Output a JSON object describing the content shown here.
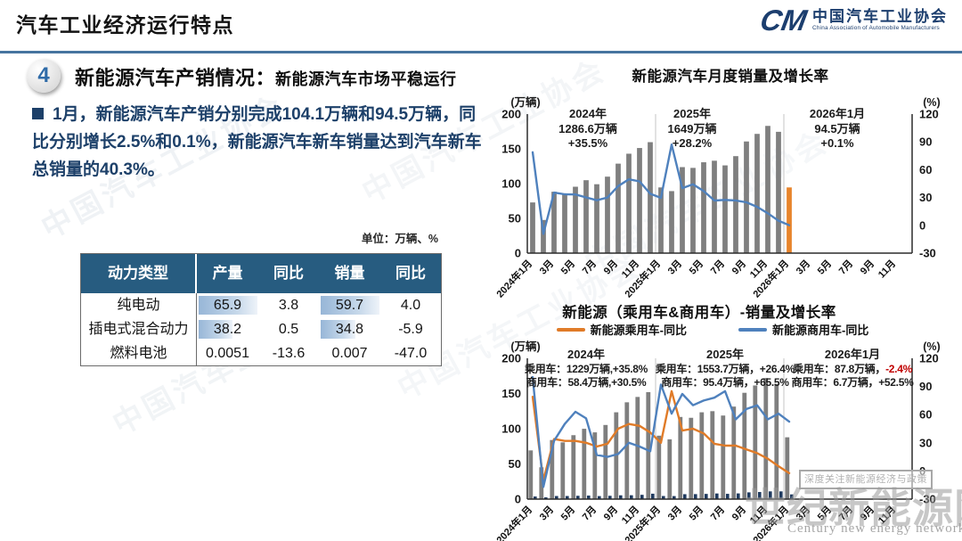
{
  "header": {
    "title": "汽车工业经济运行特点",
    "logo": {
      "mark": "CM",
      "cn": "中国汽车工业协会",
      "en": "China Association of Automobile Manufacturers"
    }
  },
  "section": {
    "number": "4",
    "title": "新能源汽车产销情况：",
    "subtitle": "新能源汽车市场平稳运行"
  },
  "paragraph": {
    "text": "1月，新能源汽车产销分别完成104.1万辆和94.5万辆，同比分别增长2.5%和0.1%，新能源汽车新车销量达到汽车新车总销量的40.3%。"
  },
  "table": {
    "unit_note": "单位：万辆、%",
    "headers": [
      "动力类型",
      "产量",
      "同比",
      "销量",
      "同比"
    ],
    "rows": [
      {
        "type": "纯电动",
        "production": "65.9",
        "production_yoy": "3.8",
        "sales": "59.7",
        "sales_yoy": "4.0"
      },
      {
        "type": "插电式混合动力",
        "production": "38.2",
        "production_yoy": "0.5",
        "sales": "34.8",
        "sales_yoy": "-5.9"
      },
      {
        "type": "燃料电池",
        "production": "0.0051",
        "production_yoy": "-13.6",
        "sales": "0.007",
        "sales_yoy": "-47.0"
      }
    ]
  },
  "chart_data": [
    {
      "type": "bar+line",
      "title": "新能源汽车月度销量及增长率",
      "left_axis": {
        "unit": "(万辆)",
        "ticks": [
          0,
          50,
          100,
          150,
          200
        ],
        "max": 200
      },
      "right_axis": {
        "unit": "(%)",
        "ticks": [
          -30,
          0,
          30,
          60,
          90,
          120
        ],
        "min": -30,
        "max": 120
      },
      "n_slots": 36,
      "group_dividers": [
        12,
        24
      ],
      "x_labels": [
        "2024年1月",
        "3月",
        "5月",
        "7月",
        "9月",
        "11月",
        "2025年1月",
        "3月",
        "5月",
        "7月",
        "9月",
        "11月",
        "2026年1月",
        "3月",
        "5月",
        "7月",
        "9月",
        "11月"
      ],
      "bar_series": [
        {
          "name": "新能源汽车月度销量",
          "color": "#7F7F7F",
          "last_color": "#E8842B",
          "values": [
            72.9,
            47.7,
            88.3,
            85.0,
            95.5,
            104.9,
            99.1,
            110.0,
            128.7,
            143.0,
            151.2,
            159.6,
            94.5,
            89.2,
            123.7,
            122.6,
            130.7,
            132.9,
            126.2,
            139.5,
            160.6,
            171.5,
            183.0,
            174.5,
            94.5
          ]
        }
      ],
      "line_series": [
        {
          "name": "同比增长率",
          "color": "#4F81BD",
          "values": [
            78.8,
            -9.2,
            35.3,
            33.5,
            33.3,
            30.1,
            27.0,
            30.0,
            42.3,
            49.6,
            47.4,
            34.0,
            29.6,
            87.1,
            40.1,
            44.2,
            36.9,
            26.7,
            27.4,
            26.8,
            24.8,
            19.9,
            13.0,
            5.0,
            0.1
          ]
        }
      ],
      "annotations": [
        {
          "lines": [
            "2024年",
            "1286.6万辆",
            "+35.5%"
          ]
        },
        {
          "lines": [
            "2025年",
            "1649万辆",
            "+28.2%"
          ]
        },
        {
          "lines": [
            "2026年1月",
            "94.5万辆",
            "+0.1%"
          ]
        }
      ]
    },
    {
      "type": "bar+line",
      "title": "新能源（乘用车&商用车）-销量及增长率",
      "legend": [
        {
          "label": "新能源乘用车-同比",
          "color": "#E07B28"
        },
        {
          "label": "新能源商用车-同比",
          "color": "#4F81BD"
        }
      ],
      "left_axis": {
        "unit": "(万辆)",
        "ticks": [
          0,
          50,
          100,
          150,
          200
        ],
        "max": 200
      },
      "right_axis": {
        "unit": "(%)",
        "ticks": [
          -30,
          0,
          30,
          60,
          90,
          120
        ],
        "min": -30,
        "max": 120
      },
      "n_slots": 36,
      "group_dividers": [
        12,
        24
      ],
      "x_labels": [
        "2024年1月",
        "3月",
        "5月",
        "7月",
        "9月",
        "11月",
        "2025年1月",
        "3月",
        "5月",
        "7月",
        "9月",
        "11月",
        "2026年1月",
        "3月",
        "5月",
        "7月",
        "9月",
        "11月"
      ],
      "bar_series": [
        {
          "name": "新能源乘用车销量",
          "color": "#7F7F7F",
          "values": [
            69.2,
            45.2,
            83.9,
            80.6,
            90.8,
            99.9,
            94.8,
            105.3,
            123.3,
            137.5,
            145.1,
            151.9,
            90.1,
            84.9,
            116.7,
            115.5,
            123.3,
            124.9,
            118.7,
            131.4,
            151.0,
            161.4,
            172.0,
            163.5,
            87.8
          ]
        },
        {
          "name": "新能源商用车销量",
          "color": "#1F3A5F",
          "values": [
            3.7,
            2.5,
            4.4,
            4.4,
            4.7,
            5.0,
            4.3,
            4.7,
            5.4,
            5.5,
            6.1,
            7.7,
            4.4,
            4.3,
            7.0,
            7.1,
            7.4,
            8.0,
            7.5,
            8.1,
            9.6,
            10.1,
            11.0,
            11.0,
            6.7
          ]
        }
      ],
      "line_series": [
        {
          "name": "新能源乘用车-同比",
          "color": "#E07B28",
          "values": [
            79,
            -10,
            34,
            32,
            32,
            30,
            26,
            29,
            45,
            50,
            48,
            41,
            30,
            85,
            43,
            45,
            40,
            29,
            27,
            27,
            23,
            19,
            13,
            5,
            -2.4
          ]
        },
        {
          "name": "新能源商用车-同比",
          "color": "#4F81BD",
          "values": [
            100,
            -17,
            32,
            50,
            63,
            56,
            17,
            15,
            18,
            30,
            26,
            21,
            92,
            61,
            82,
            70,
            75,
            78,
            85,
            55,
            66,
            70,
            55,
            61,
            52.5
          ]
        }
      ],
      "annotations": [
        {
          "title": "2024年",
          "rows": [
            {
              "text": "乘用车：1229万辆,+35.8%",
              "red": ""
            },
            {
              "text": "商用车：58.4万辆,+30.5%",
              "red": ""
            }
          ]
        },
        {
          "title": "2025年",
          "rows": [
            {
              "text": "乘用车：1553.7万辆，+26.4%",
              "red": ""
            },
            {
              "text": "商用车：95.4万辆，+65.5%",
              "red": ""
            }
          ]
        },
        {
          "title": "2026年1月",
          "rows": [
            {
              "text": "乘用车：87.8万辆，",
              "red": "-2.4%"
            },
            {
              "text": "商用车：6.7万辆，+52.5%",
              "red": ""
            }
          ]
        }
      ]
    }
  ],
  "watermarks": {
    "box_text": "深度关注新能源经济与政策",
    "brand_cn": "世纪新能源网",
    "brand_en": "Century new energy network",
    "diagonal_text": "中国汽车工业协会"
  }
}
